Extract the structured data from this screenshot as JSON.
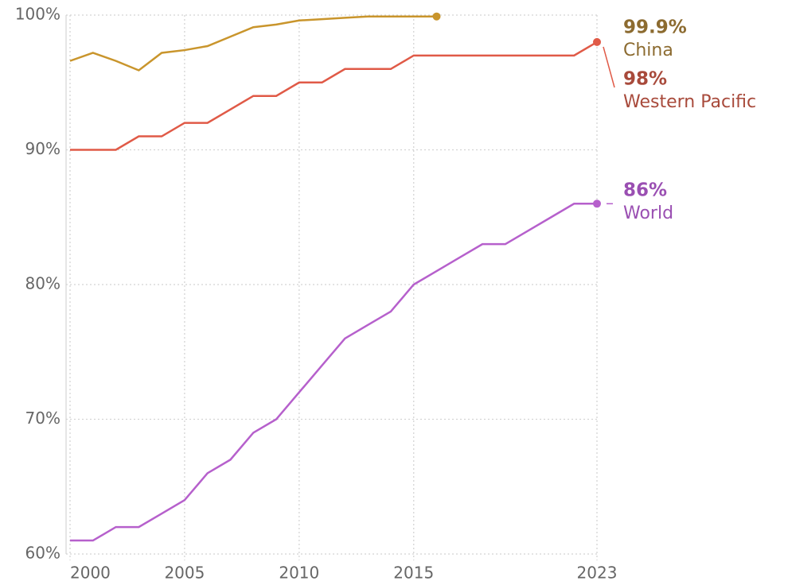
{
  "chart_data": {
    "type": "line",
    "x": [
      2000,
      2001,
      2002,
      2003,
      2004,
      2005,
      2006,
      2007,
      2008,
      2009,
      2010,
      2011,
      2012,
      2013,
      2014,
      2015,
      2016,
      2017,
      2018,
      2019,
      2020,
      2021,
      2022,
      2023
    ],
    "xlim": [
      2000,
      2023
    ],
    "xticks": [
      2000,
      2005,
      2010,
      2015,
      2023
    ],
    "ylim": [
      60,
      100
    ],
    "yticks": [
      {
        "value": 60,
        "label": "60%"
      },
      {
        "value": 70,
        "label": "70%"
      },
      {
        "value": 80,
        "label": "80%"
      },
      {
        "value": 90,
        "label": "90%"
      },
      {
        "value": 100,
        "label": "100%"
      }
    ],
    "grid": true,
    "series": [
      {
        "name": "China",
        "color": "#c9952c",
        "label_color": "#8c6b30",
        "values": [
          96.6,
          97.2,
          96.6,
          95.9,
          97.2,
          97.4,
          97.7,
          98.4,
          99.1,
          99.3,
          99.6,
          99.7,
          99.8,
          99.9,
          99.9,
          99.9,
          99.9,
          null,
          null,
          null,
          null,
          null,
          null,
          null
        ],
        "value_labels": [
          null,
          null,
          null,
          null,
          null,
          null,
          null,
          null,
          null,
          null,
          null,
          null,
          null,
          null,
          null,
          null,
          "99.9%",
          null,
          null,
          null,
          null,
          null,
          null,
          null
        ]
      },
      {
        "name": "Western Pacific",
        "color": "#e05a47",
        "label_color": "#a84a3b",
        "values": [
          90,
          90,
          90,
          91,
          91,
          92,
          92,
          93,
          94,
          94,
          95,
          95,
          96,
          96,
          96,
          97,
          97,
          97,
          97,
          97,
          97,
          97,
          97,
          98
        ],
        "value_labels": [
          null,
          null,
          null,
          null,
          null,
          null,
          null,
          null,
          null,
          null,
          null,
          null,
          null,
          null,
          null,
          null,
          null,
          null,
          null,
          null,
          null,
          null,
          null,
          "98%"
        ]
      },
      {
        "name": "World",
        "color": "#b660cc",
        "label_color": "#9a4fb2",
        "values": [
          61,
          61,
          62,
          62,
          63,
          64,
          66,
          67,
          69,
          70,
          72,
          74,
          76,
          77,
          78,
          80,
          81,
          82,
          83,
          83,
          84,
          85,
          86,
          86
        ],
        "value_labels": [
          null,
          null,
          null,
          null,
          null,
          null,
          null,
          null,
          null,
          null,
          null,
          null,
          null,
          null,
          null,
          null,
          null,
          null,
          null,
          null,
          null,
          null,
          null,
          "86%"
        ]
      }
    ]
  }
}
